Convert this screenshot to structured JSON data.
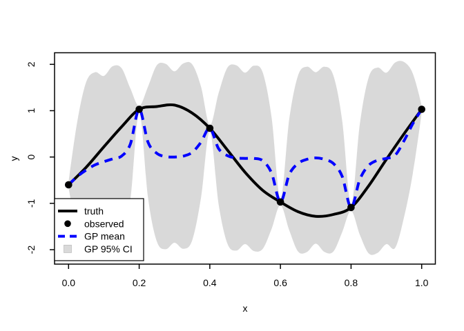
{
  "chart_data": {
    "type": "line",
    "title": "",
    "xlabel": "x",
    "ylabel": "y",
    "xlim": [
      -0.04,
      1.04
    ],
    "ylim": [
      -2.31,
      2.24
    ],
    "grid": false,
    "background": "#ffffff",
    "frame_color": "#000000",
    "x_ticks": {
      "values": [
        0.0,
        0.2,
        0.4,
        0.6,
        0.8,
        1.0
      ],
      "labels": [
        "0.0",
        "0.2",
        "0.4",
        "0.6",
        "0.8",
        "1.0"
      ]
    },
    "y_ticks": {
      "values": [
        -2,
        -1,
        0,
        1,
        2
      ],
      "labels": [
        "-2",
        "-1",
        "0",
        "1",
        "2"
      ]
    },
    "x_grid": [
      0,
      0.025,
      0.05,
      0.075,
      0.1,
      0.125,
      0.15,
      0.175,
      0.2,
      0.225,
      0.25,
      0.275,
      0.3,
      0.325,
      0.35,
      0.375,
      0.4,
      0.425,
      0.45,
      0.475,
      0.5,
      0.525,
      0.55,
      0.575,
      0.6,
      0.625,
      0.65,
      0.675,
      0.7,
      0.725,
      0.75,
      0.775,
      0.8,
      0.825,
      0.85,
      0.875,
      0.9,
      0.925,
      0.95,
      0.975,
      1.0
    ],
    "series": [
      {
        "name": "GP 95% CI",
        "type": "band",
        "color": "#d9d9d9",
        "upper": [
          -0.53,
          0.78,
          1.62,
          1.83,
          1.75,
          1.96,
          1.92,
          1.48,
          1.1,
          1.52,
          1.98,
          2.01,
          1.85,
          2.02,
          2.0,
          1.52,
          0.69,
          1.38,
          1.93,
          1.98,
          1.82,
          1.97,
          1.82,
          0.85,
          -0.9,
          0.82,
          1.76,
          1.95,
          1.83,
          1.95,
          1.76,
          0.78,
          -1.02,
          0.72,
          1.72,
          1.93,
          1.82,
          2.04,
          2.05,
          1.8,
          1.1
        ],
        "lower": [
          -0.67,
          -1.62,
          -2.18,
          -2.17,
          -1.95,
          -2.04,
          -1.88,
          -0.92,
          0.96,
          -0.88,
          -1.82,
          -1.99,
          -1.85,
          -1.98,
          -1.8,
          -0.88,
          0.55,
          -1.02,
          -1.87,
          -2.02,
          -1.88,
          -2.03,
          -1.98,
          -1.55,
          -1.04,
          -1.58,
          -2.04,
          -2.05,
          -1.87,
          -2.05,
          -2.04,
          -1.62,
          -1.16,
          -1.68,
          -2.08,
          -2.07,
          -1.88,
          -1.96,
          -1.3,
          -0.35,
          0.96
        ]
      },
      {
        "name": "truth",
        "type": "line",
        "style": "solid",
        "color": "#000000",
        "x": [
          0,
          0.05,
          0.1,
          0.15,
          0.2,
          0.25,
          0.3,
          0.35,
          0.4,
          0.45,
          0.5,
          0.55,
          0.6,
          0.65,
          0.7,
          0.75,
          0.8,
          0.85,
          0.9,
          0.95,
          1.0
        ],
        "y": [
          -0.6,
          -0.22,
          0.22,
          0.65,
          1.03,
          1.09,
          1.12,
          0.95,
          0.62,
          0.15,
          -0.33,
          -0.72,
          -0.97,
          -1.18,
          -1.28,
          -1.24,
          -1.09,
          -0.62,
          -0.05,
          0.5,
          1.03
        ]
      },
      {
        "name": "GP mean",
        "type": "line",
        "style": "dashed",
        "color": "#0000ff",
        "y": [
          -0.6,
          -0.42,
          -0.28,
          -0.17,
          -0.1,
          -0.04,
          0.02,
          0.28,
          1.03,
          0.32,
          0.08,
          0.01,
          0.0,
          0.02,
          0.1,
          0.32,
          0.62,
          0.18,
          0.03,
          -0.02,
          -0.03,
          -0.03,
          -0.08,
          -0.35,
          -0.97,
          -0.38,
          -0.14,
          -0.05,
          -0.02,
          -0.05,
          -0.14,
          -0.42,
          -1.09,
          -0.48,
          -0.18,
          -0.07,
          -0.03,
          0.04,
          0.35,
          0.72,
          1.03
        ]
      },
      {
        "name": "observed",
        "type": "scatter",
        "color": "#000000",
        "x": [
          0.0,
          0.2,
          0.4,
          0.6,
          0.8,
          1.0
        ],
        "y": [
          -0.6,
          1.03,
          0.62,
          -0.97,
          -1.09,
          1.03
        ]
      }
    ],
    "legend": {
      "position": "bottomleft",
      "entries": [
        {
          "label": "truth",
          "swatch": "solid-line",
          "color": "#000000"
        },
        {
          "label": "observed",
          "swatch": "point",
          "color": "#000000"
        },
        {
          "label": "GP mean",
          "swatch": "dashed-line",
          "color": "#0000ff"
        },
        {
          "label": "GP 95% CI",
          "swatch": "square",
          "color": "#d9d9d9"
        }
      ]
    }
  }
}
